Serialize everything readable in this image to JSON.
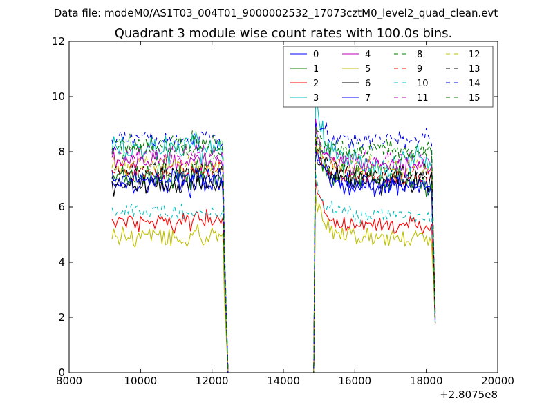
{
  "chart_data": {
    "type": "line",
    "suptitle": "Data file: modeM0/AS1T03_004T01_9000002532_17073cztM0_level2_quad_clean.evt",
    "title": "Quadrant 3 module wise count rates with 100.0s bins.",
    "xlabel": "",
    "ylabel": "",
    "xlim": [
      8000,
      20000
    ],
    "ylim": [
      0,
      12
    ],
    "x_offset_label": "+2.8075e8",
    "xticks": [
      8000,
      10000,
      12000,
      14000,
      16000,
      18000,
      20000
    ],
    "yticks": [
      0,
      2,
      4,
      6,
      8,
      10,
      12
    ],
    "grid": false,
    "legend": {
      "placement": "top-right",
      "columns": 4
    },
    "gap": [
      12450,
      14850
    ],
    "seg1": [
      9200,
      12300
    ],
    "seg2": [
      14950,
      18150
    ],
    "series": [
      {
        "name": "0",
        "color": "#0000ff",
        "dash": "solid",
        "level1": 6.9,
        "level2": 6.8,
        "noise": 0.35,
        "peak": 8.3
      },
      {
        "name": "1",
        "color": "#008000",
        "dash": "solid",
        "level1": 7.2,
        "level2": 7.0,
        "noise": 0.4,
        "peak": 8.6
      },
      {
        "name": "2",
        "color": "#ff0000",
        "dash": "solid",
        "level1": 5.5,
        "level2": 5.3,
        "noise": 0.3,
        "peak": 7.0
      },
      {
        "name": "3",
        "color": "#00bfbf",
        "dash": "solid",
        "level1": 8.1,
        "level2": 7.6,
        "noise": 0.45,
        "peak": 10.0
      },
      {
        "name": "4",
        "color": "#bf00bf",
        "dash": "solid",
        "level1": 7.7,
        "level2": 7.5,
        "noise": 0.3,
        "peak": 9.2
      },
      {
        "name": "5",
        "color": "#bfbf00",
        "dash": "solid",
        "level1": 4.9,
        "level2": 4.9,
        "noise": 0.3,
        "peak": 6.5
      },
      {
        "name": "6",
        "color": "#000000",
        "dash": "solid",
        "level1": 6.8,
        "level2": 6.9,
        "noise": 0.3,
        "peak": 8.2
      },
      {
        "name": "7",
        "color": "#0000ff",
        "dash": "solid",
        "level1": 7.0,
        "level2": 6.8,
        "noise": 0.3,
        "peak": 8.0
      },
      {
        "name": "8",
        "color": "#008000",
        "dash": "dashed",
        "level1": 8.1,
        "level2": 8.1,
        "noise": 0.3,
        "peak": 9.0
      },
      {
        "name": "9",
        "color": "#ff0000",
        "dash": "dashed",
        "level1": 7.3,
        "level2": 7.1,
        "noise": 0.3,
        "peak": 8.5
      },
      {
        "name": "10",
        "color": "#00bfbf",
        "dash": "dashed",
        "level1": 5.8,
        "level2": 5.7,
        "noise": 0.25,
        "peak": 7.2
      },
      {
        "name": "11",
        "color": "#bf00bf",
        "dash": "dashed",
        "level1": 7.9,
        "level2": 7.7,
        "noise": 0.3,
        "peak": 8.9
      },
      {
        "name": "12",
        "color": "#bfbf00",
        "dash": "dashed",
        "level1": 7.5,
        "level2": 7.4,
        "noise": 0.3,
        "peak": 8.6
      },
      {
        "name": "13",
        "color": "#000000",
        "dash": "dashed",
        "level1": 7.3,
        "level2": 7.2,
        "noise": 0.3,
        "peak": 8.5
      },
      {
        "name": "14",
        "color": "#0000ff",
        "dash": "dashed",
        "level1": 8.5,
        "level2": 8.4,
        "noise": 0.3,
        "peak": 9.1
      },
      {
        "name": "15",
        "color": "#008000",
        "dash": "dashed",
        "level1": 8.3,
        "level2": 8.0,
        "noise": 0.3,
        "peak": 8.9
      }
    ]
  }
}
